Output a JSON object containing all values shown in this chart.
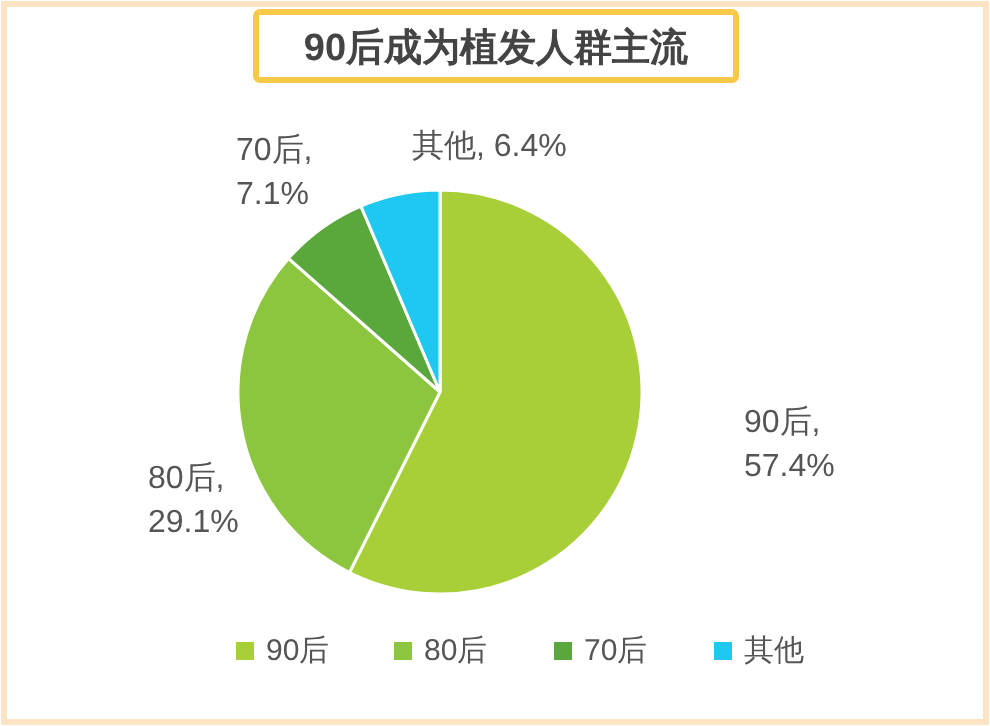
{
  "chart_data": {
    "type": "pie",
    "title": "90后成为植发人群主流",
    "categories": [
      "90后",
      "80后",
      "70后",
      "其他"
    ],
    "values": [
      57.4,
      29.1,
      7.1,
      6.4
    ],
    "colors": [
      "#a9cf38",
      "#8cc63f",
      "#5aa83c",
      "#1ec8f0"
    ],
    "value_labels": [
      "90后, 57.4%",
      "80后, 29.1%",
      "70后, 7.1%",
      "其他, 6.4%"
    ],
    "legend": "bottom"
  }
}
